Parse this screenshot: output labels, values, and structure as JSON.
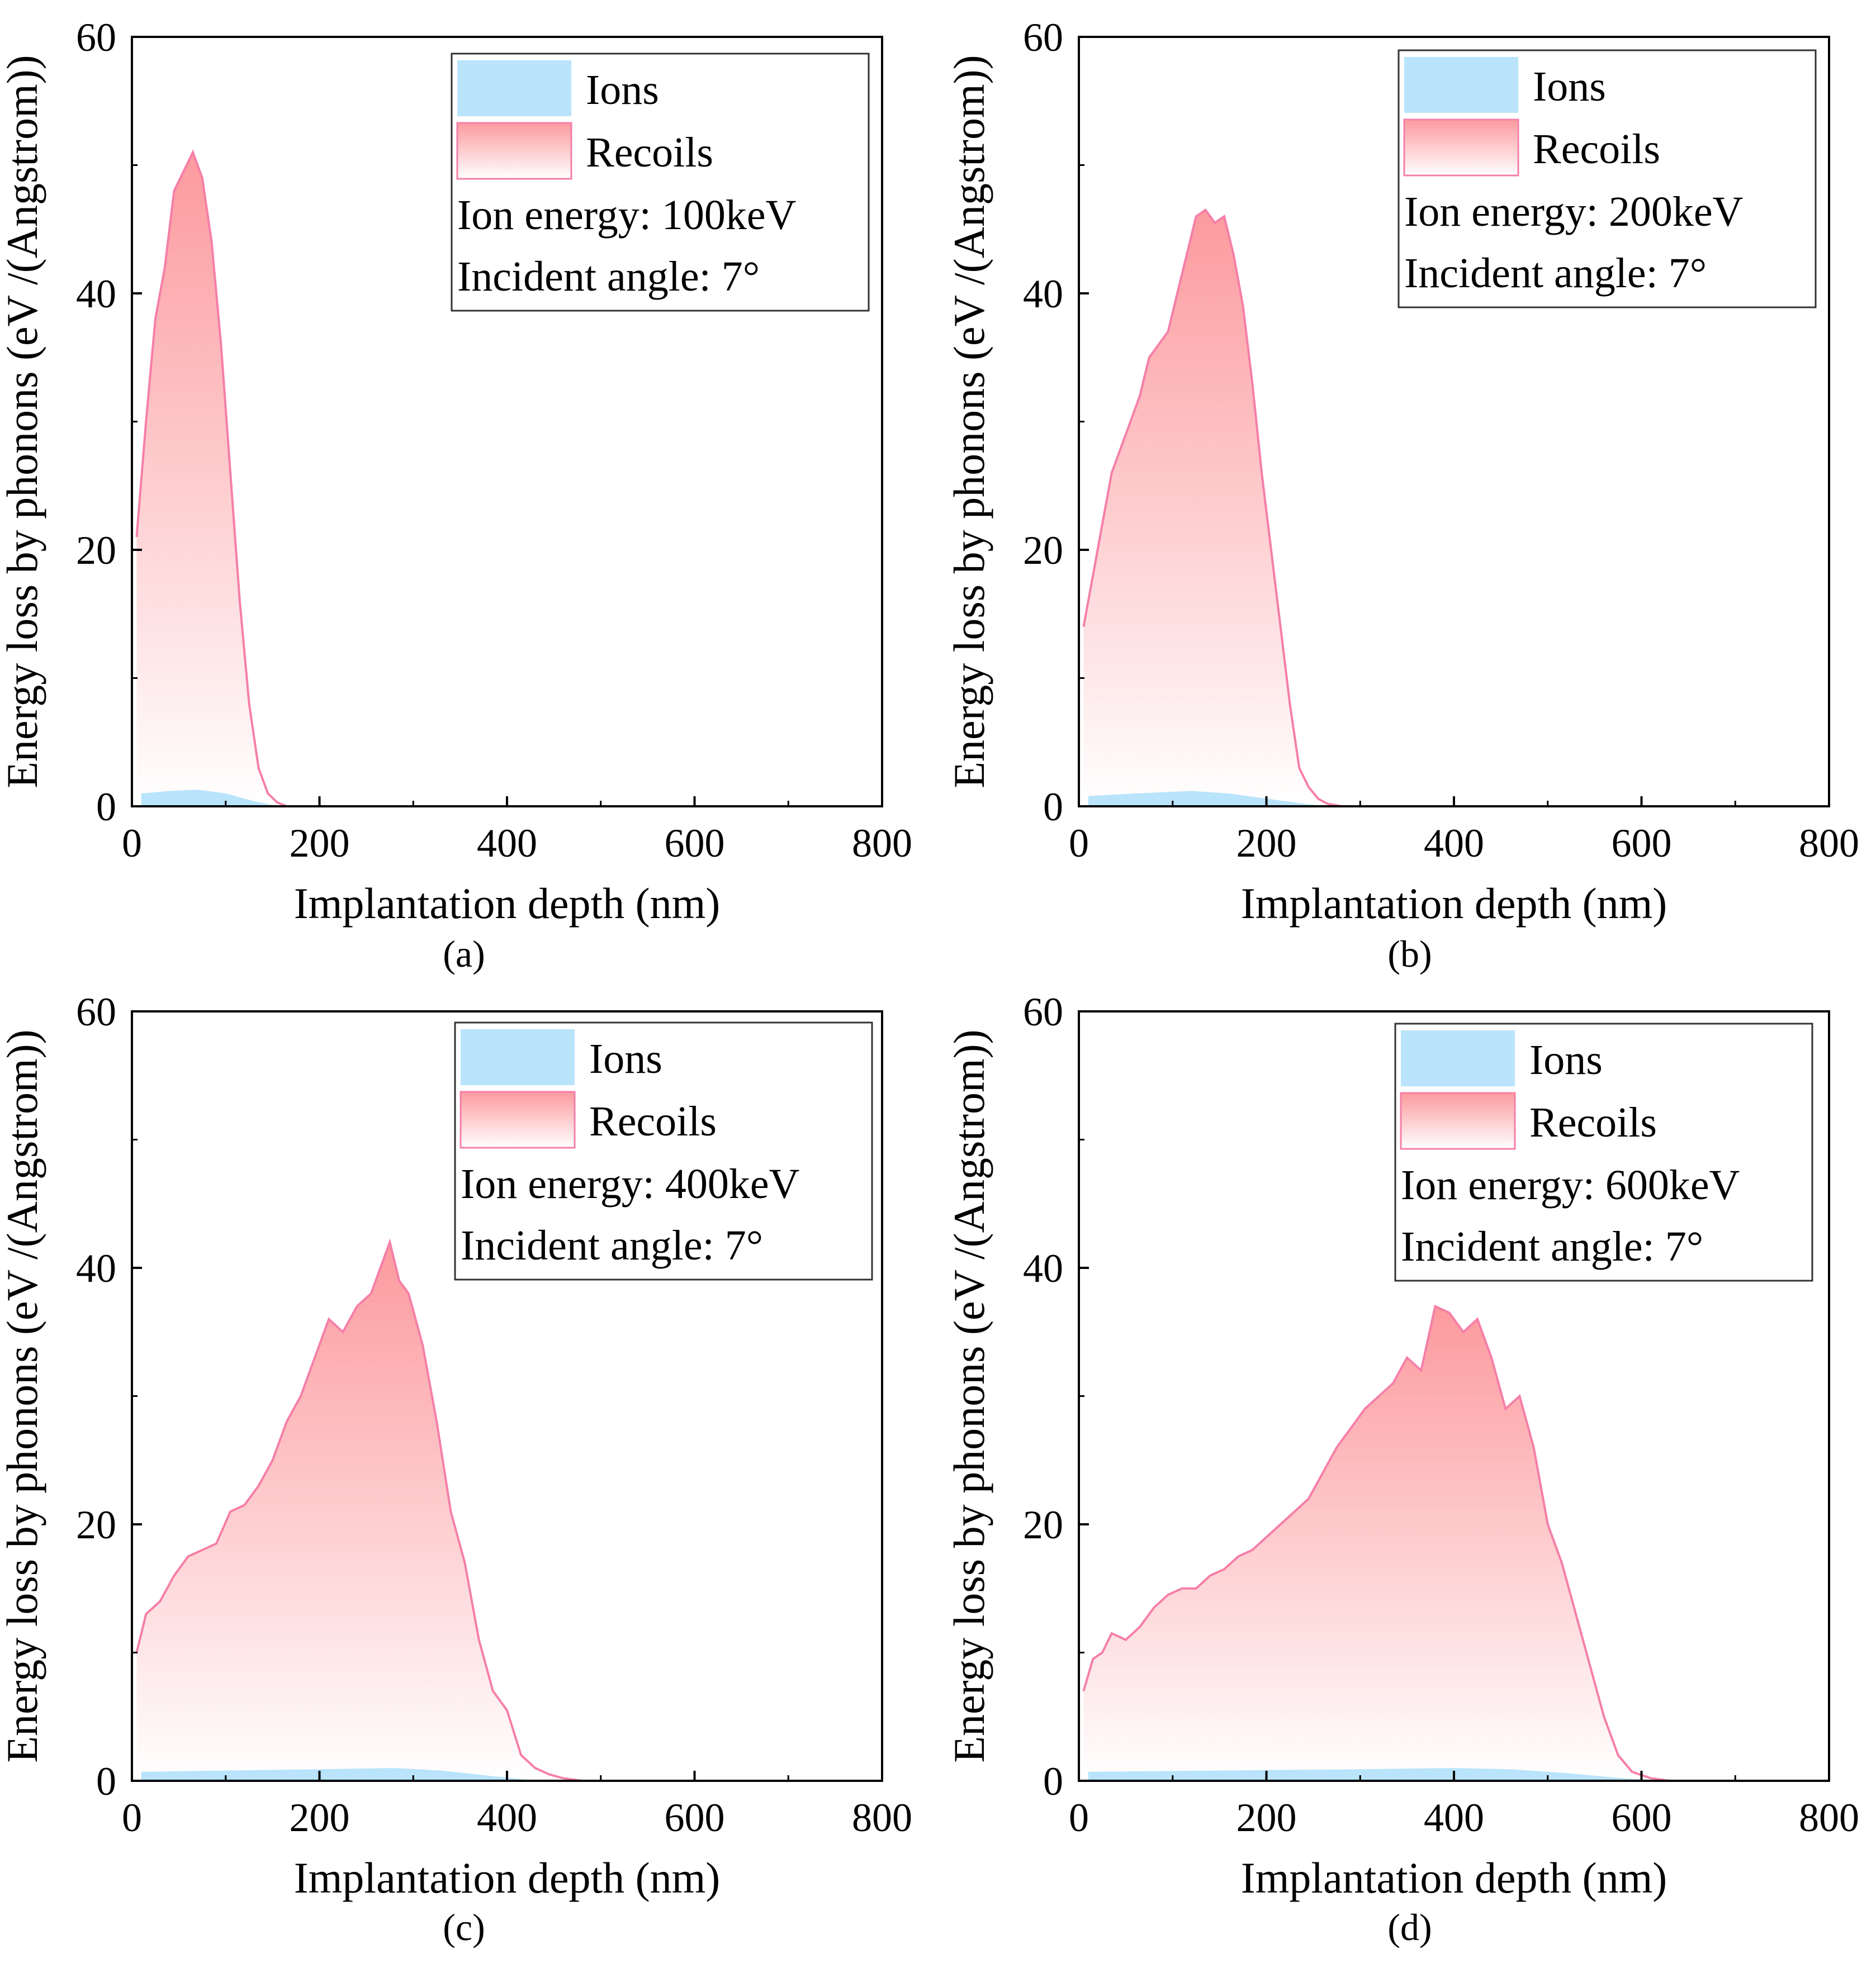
{
  "figure": {
    "panels": [
      {
        "label": "(a)",
        "legend": {
          "ions": "Ions",
          "recoils": "Recoils",
          "energy": "Ion energy: 100keV",
          "angle": "Incident angle: 7°"
        }
      },
      {
        "label": "(b)",
        "legend": {
          "ions": "Ions",
          "recoils": "Recoils",
          "energy": "Ion energy: 200keV",
          "angle": "Incident angle: 7°"
        }
      },
      {
        "label": "(c)",
        "legend": {
          "ions": "Ions",
          "recoils": "Recoils",
          "energy": "Ion energy: 400keV",
          "angle": "Incident angle: 7°"
        }
      },
      {
        "label": "(d)",
        "legend": {
          "ions": "Ions",
          "recoils": "Recoils",
          "energy": "Ion energy: 600keV",
          "angle": "Incident angle: 7°"
        }
      }
    ]
  },
  "colors": {
    "ions_fill": "#b9e4fb",
    "recoils_top": "#fc9a9e",
    "recoils_bottom": "#ffffff",
    "recoils_line": "#f57fa8",
    "axis": "#000000"
  },
  "chart_data": [
    {
      "type": "area",
      "title": "",
      "xlabel": "Implantation depth (nm)",
      "ylabel": "Energy loss by phonons (eV /(Angstrom))",
      "xlim": [
        0,
        800
      ],
      "ylim": [
        0,
        60
      ],
      "xticks": [
        0,
        200,
        400,
        600,
        800
      ],
      "yticks": [
        0,
        20,
        40,
        60
      ],
      "legend_position": "top-right",
      "series": [
        {
          "name": "Ions",
          "x": [
            10,
            40,
            70,
            100,
            130,
            150,
            160,
            800
          ],
          "values": [
            1.0,
            1.2,
            1.3,
            1.0,
            0.4,
            0.1,
            0,
            0
          ]
        },
        {
          "name": "Recoils",
          "x": [
            5,
            15,
            25,
            35,
            45,
            55,
            65,
            75,
            85,
            95,
            105,
            115,
            125,
            135,
            145,
            155,
            165,
            200,
            800
          ],
          "values": [
            21,
            30,
            38,
            42,
            48,
            49.5,
            51,
            49,
            44,
            36,
            26,
            16,
            8,
            3,
            1,
            0.3,
            0,
            0,
            0
          ]
        }
      ]
    },
    {
      "type": "area",
      "title": "",
      "xlabel": "Implantation depth (nm)",
      "ylabel": "Energy loss by phonons (eV /(Angstrom))",
      "xlim": [
        0,
        800
      ],
      "ylim": [
        0,
        60
      ],
      "xticks": [
        0,
        200,
        400,
        600,
        800
      ],
      "yticks": [
        0,
        20,
        40,
        60
      ],
      "legend_position": "top-right",
      "series": [
        {
          "name": "Ions",
          "x": [
            10,
            60,
            120,
            160,
            200,
            240,
            270,
            800
          ],
          "values": [
            0.8,
            1.0,
            1.2,
            1.0,
            0.6,
            0.2,
            0,
            0
          ]
        },
        {
          "name": "Recoils",
          "x": [
            5,
            15,
            25,
            35,
            45,
            55,
            65,
            75,
            85,
            95,
            105,
            115,
            125,
            135,
            145,
            155,
            165,
            175,
            185,
            195,
            205,
            215,
            225,
            235,
            245,
            255,
            265,
            280,
            800
          ],
          "values": [
            14,
            18,
            22,
            26,
            28,
            30,
            32,
            35,
            36,
            37,
            40,
            43,
            46,
            46.5,
            45.5,
            46,
            43,
            39,
            33,
            26,
            20,
            14,
            8,
            3,
            1.5,
            0.6,
            0.2,
            0,
            0
          ]
        }
      ]
    },
    {
      "type": "area",
      "title": "",
      "xlabel": "Implantation depth (nm)",
      "ylabel": "Energy loss by phonons (eV /(Angstrom))",
      "xlim": [
        0,
        800
      ],
      "ylim": [
        0,
        60
      ],
      "xticks": [
        0,
        200,
        400,
        600,
        800
      ],
      "yticks": [
        0,
        20,
        40,
        60
      ],
      "legend_position": "top-right",
      "series": [
        {
          "name": "Ions",
          "x": [
            10,
            100,
            200,
            280,
            330,
            380,
            420,
            460,
            800
          ],
          "values": [
            0.7,
            0.8,
            0.9,
            1.0,
            0.8,
            0.4,
            0.1,
            0,
            0
          ]
        },
        {
          "name": "Recoils",
          "x": [
            5,
            15,
            30,
            45,
            60,
            75,
            90,
            105,
            120,
            135,
            150,
            165,
            180,
            195,
            210,
            225,
            240,
            255,
            265,
            275,
            285,
            295,
            310,
            325,
            340,
            355,
            370,
            385,
            400,
            415,
            430,
            445,
            460,
            480,
            800
          ],
          "values": [
            10,
            13,
            14,
            16,
            17.5,
            18,
            18.5,
            21,
            21.5,
            23,
            25,
            28,
            30,
            33,
            36,
            35,
            37,
            38,
            40,
            42,
            39,
            38,
            34,
            28,
            21,
            17,
            11,
            7,
            5.5,
            2,
            1,
            0.5,
            0.2,
            0,
            0
          ]
        }
      ]
    },
    {
      "type": "area",
      "title": "",
      "xlabel": "Implantation depth (nm)",
      "ylabel": "Energy loss by phonons (eV /(Angstrom))",
      "xlim": [
        0,
        800
      ],
      "ylim": [
        0,
        60
      ],
      "xticks": [
        0,
        200,
        400,
        600,
        800
      ],
      "yticks": [
        0,
        20,
        40,
        60
      ],
      "legend_position": "top-right",
      "series": [
        {
          "name": "Ions",
          "x": [
            10,
            150,
            300,
            400,
            460,
            520,
            580,
            630,
            800
          ],
          "values": [
            0.7,
            0.8,
            0.9,
            1.0,
            0.9,
            0.6,
            0.2,
            0,
            0
          ]
        },
        {
          "name": "Recoils",
          "x": [
            5,
            15,
            25,
            35,
            50,
            65,
            80,
            95,
            110,
            125,
            140,
            155,
            170,
            185,
            200,
            215,
            230,
            245,
            260,
            275,
            290,
            305,
            320,
            335,
            350,
            365,
            380,
            395,
            410,
            425,
            440,
            455,
            470,
            485,
            500,
            515,
            530,
            545,
            560,
            575,
            590,
            610,
            630,
            800
          ],
          "values": [
            7,
            9.5,
            10,
            11.5,
            11,
            12,
            13.5,
            14.5,
            15,
            15,
            16,
            16.5,
            17.5,
            18,
            19,
            20,
            21,
            22,
            24,
            26,
            27.5,
            29,
            30,
            31,
            33,
            32,
            37,
            36.5,
            35,
            36,
            33,
            29,
            30,
            26,
            20,
            17,
            13,
            9,
            5,
            2,
            0.7,
            0.2,
            0,
            0
          ]
        }
      ]
    }
  ]
}
